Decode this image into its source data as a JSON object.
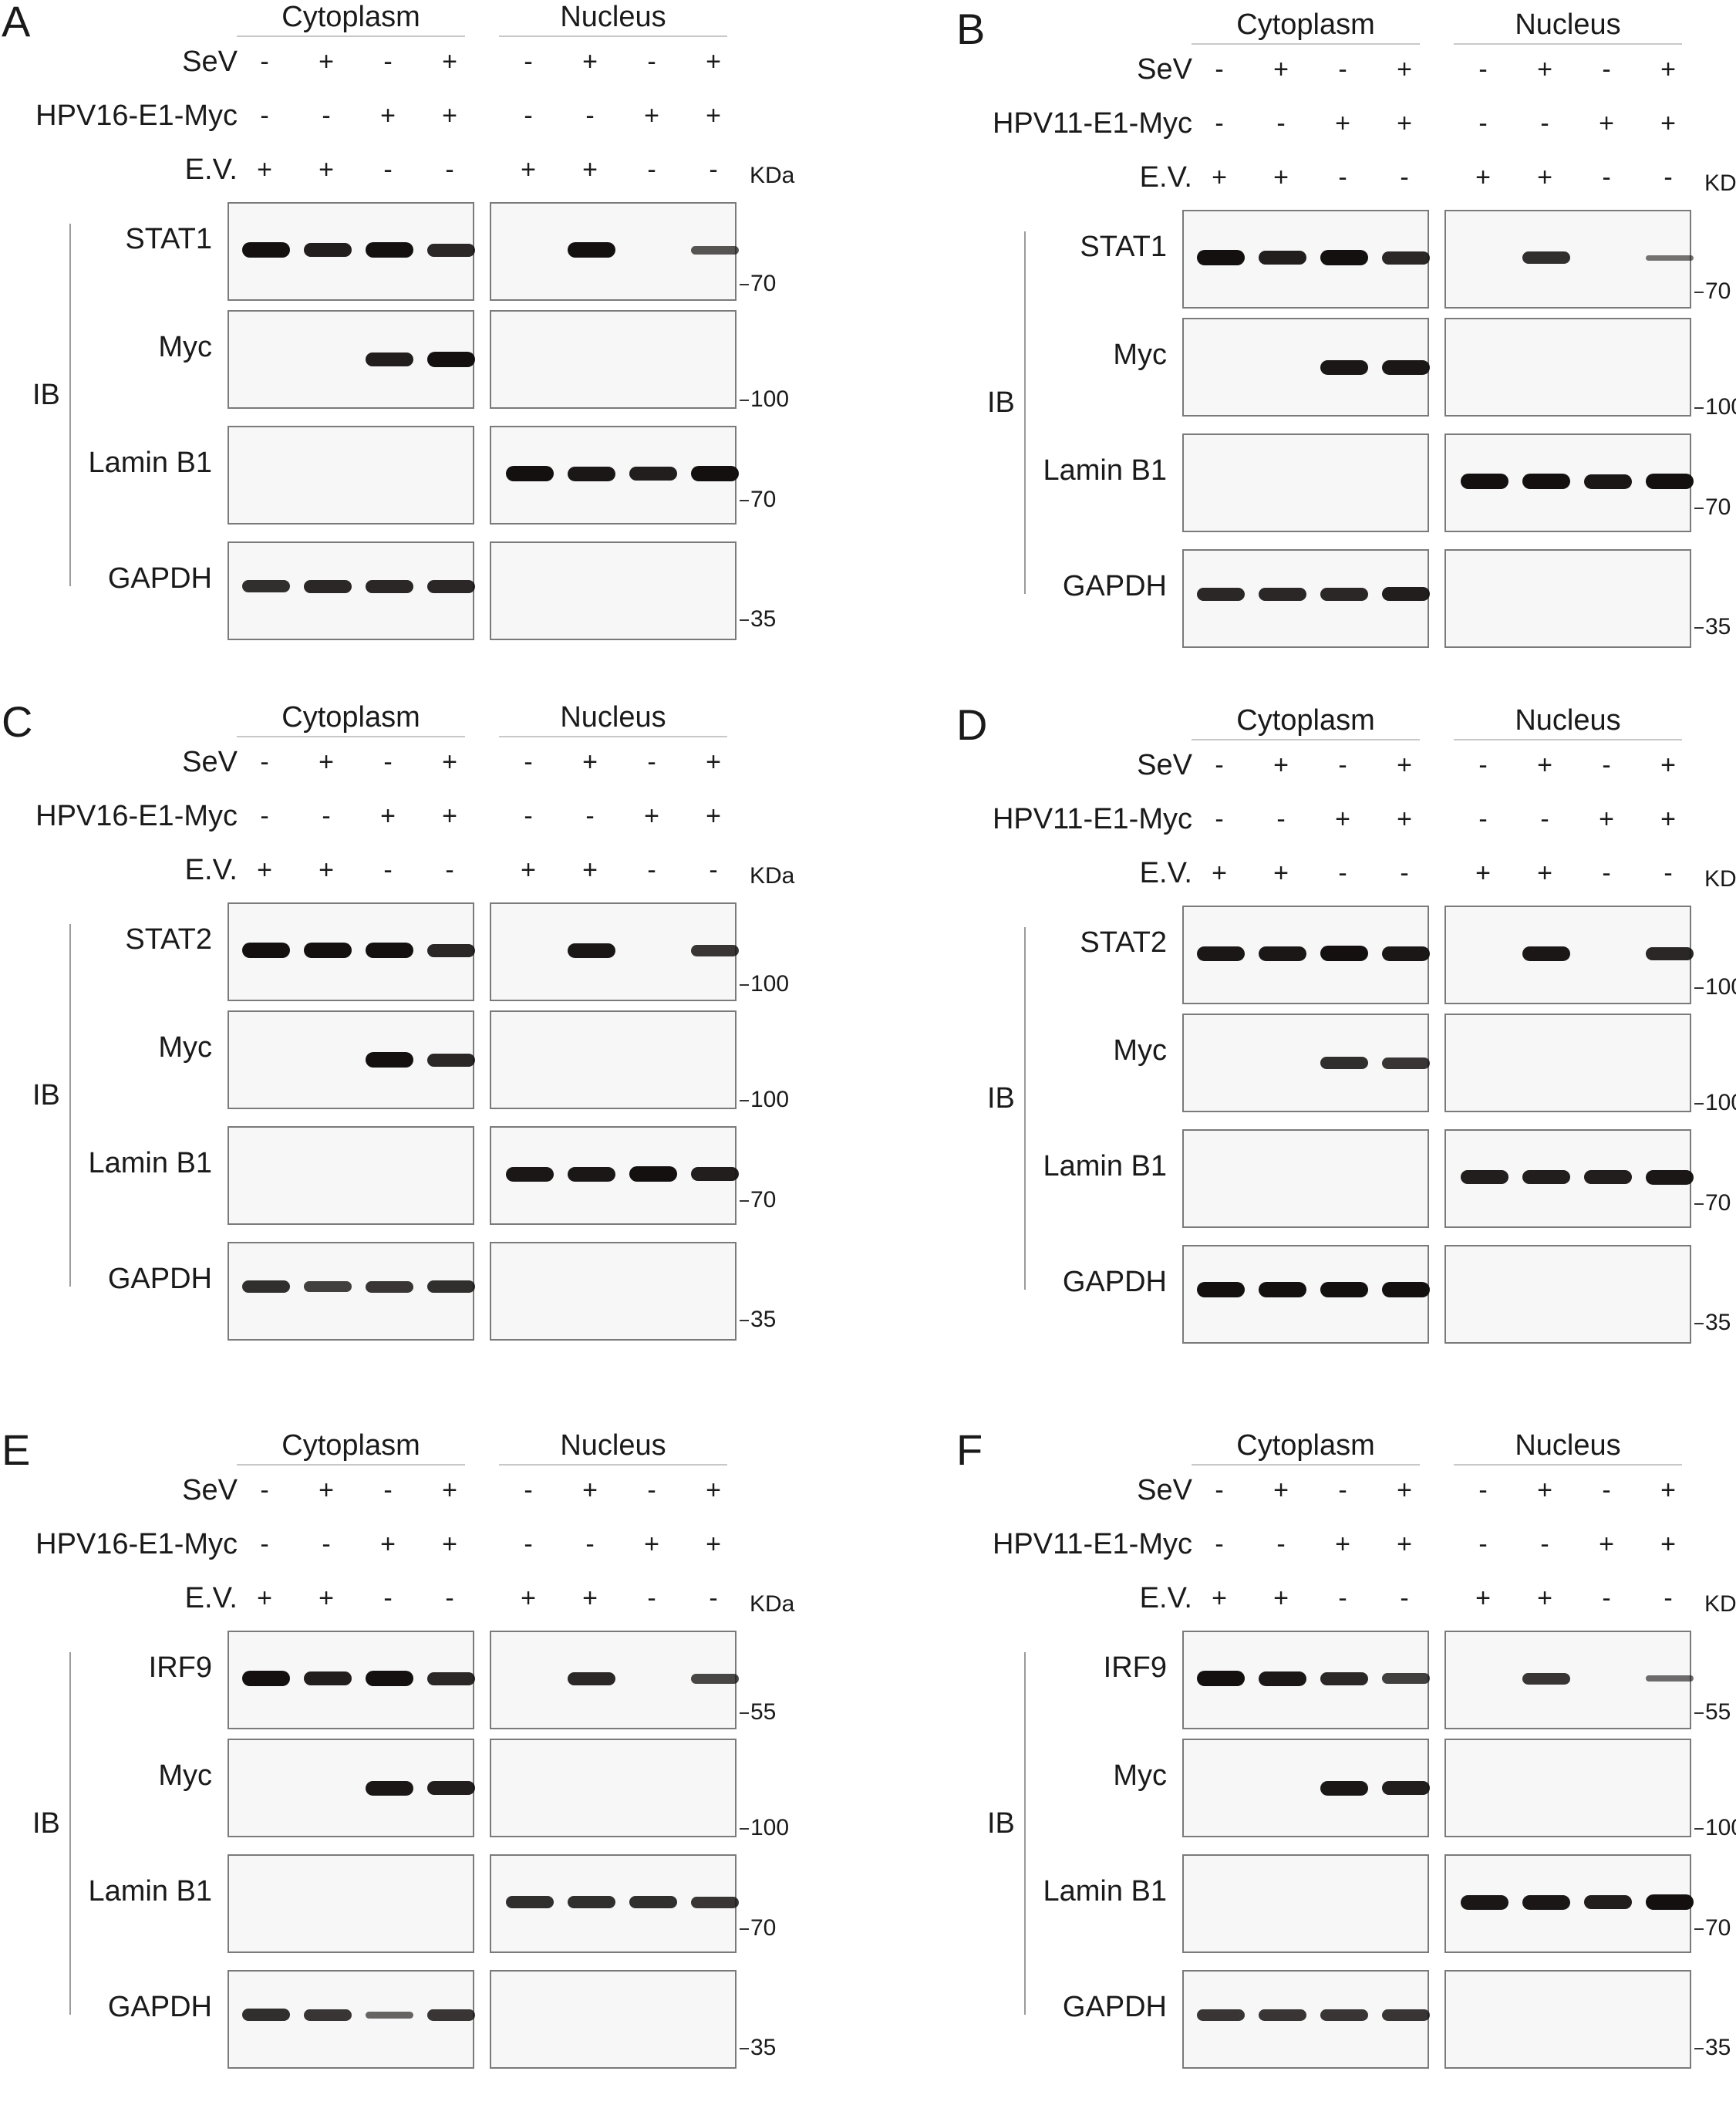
{
  "panels": [
    {
      "letter": "A",
      "fractions": [
        "Cytoplasm",
        "Nucleus"
      ],
      "treatments": [
        {
          "name": "SeV",
          "signs": [
            "-",
            "+",
            "-",
            "+",
            "-",
            "+",
            "-",
            "+"
          ]
        },
        {
          "name": "HPV16-E1-Myc",
          "signs": [
            "-",
            "-",
            "+",
            "+",
            "-",
            "-",
            "+",
            "+"
          ]
        },
        {
          "name": "E.V.",
          "signs": [
            "+",
            "+",
            "-",
            "-",
            "+",
            "+",
            "-",
            "-"
          ]
        }
      ],
      "kda_label": "KDa",
      "ib_label": "IB",
      "blots": [
        {
          "protein": "STAT1",
          "marker": "70",
          "cyto": [
            1,
            0.9,
            1,
            0.85
          ],
          "nuc": [
            0,
            1,
            0,
            0.55
          ]
        },
        {
          "protein": "Myc",
          "marker": "100",
          "cyto": [
            0,
            0,
            0.9,
            1
          ],
          "nuc": [
            0,
            0,
            0,
            0
          ]
        },
        {
          "protein": "Lamin B1",
          "marker": "70",
          "cyto": [
            0,
            0,
            0,
            0
          ],
          "nuc": [
            1,
            0.95,
            0.9,
            1
          ]
        },
        {
          "protein": "GAPDH",
          "marker": "35",
          "cyto": [
            0.8,
            0.85,
            0.85,
            0.85
          ],
          "nuc": [
            0,
            0,
            0,
            0
          ]
        }
      ]
    },
    {
      "letter": "B",
      "fractions": [
        "Cytoplasm",
        "Nucleus"
      ],
      "treatments": [
        {
          "name": "SeV",
          "signs": [
            "-",
            "+",
            "-",
            "+",
            "-",
            "+",
            "-",
            "+"
          ]
        },
        {
          "name": "HPV11-E1-Myc",
          "signs": [
            "-",
            "-",
            "+",
            "+",
            "-",
            "-",
            "+",
            "+"
          ]
        },
        {
          "name": "E.V.",
          "signs": [
            "+",
            "+",
            "-",
            "-",
            "+",
            "+",
            "-",
            "-"
          ]
        }
      ],
      "kda_label": "KDa",
      "ib_label": "IB",
      "blots": [
        {
          "protein": "STAT1",
          "marker": "70",
          "cyto": [
            1,
            0.9,
            1,
            0.85
          ],
          "nuc": [
            0,
            0.8,
            0,
            0.35
          ]
        },
        {
          "protein": "Myc",
          "marker": "100",
          "cyto": [
            0,
            0,
            0.95,
            0.95
          ],
          "nuc": [
            0,
            0,
            0,
            0
          ]
        },
        {
          "protein": "Lamin B1",
          "marker": "70",
          "cyto": [
            0,
            0,
            0,
            0
          ],
          "nuc": [
            1,
            1,
            0.95,
            1
          ]
        },
        {
          "protein": "GAPDH",
          "marker": "35",
          "cyto": [
            0.85,
            0.85,
            0.85,
            0.9
          ],
          "nuc": [
            0,
            0,
            0,
            0
          ]
        }
      ]
    },
    {
      "letter": "C",
      "fractions": [
        "Cytoplasm",
        "Nucleus"
      ],
      "treatments": [
        {
          "name": "SeV",
          "signs": [
            "-",
            "+",
            "-",
            "+",
            "-",
            "+",
            "-",
            "+"
          ]
        },
        {
          "name": "HPV16-E1-Myc",
          "signs": [
            "-",
            "-",
            "+",
            "+",
            "-",
            "-",
            "+",
            "+"
          ]
        },
        {
          "name": "E.V.",
          "signs": [
            "+",
            "+",
            "-",
            "-",
            "+",
            "+",
            "-",
            "-"
          ]
        }
      ],
      "kda_label": "KDa",
      "ib_label": "IB",
      "blots": [
        {
          "protein": "STAT2",
          "marker": "100",
          "cyto": [
            1,
            1,
            1,
            0.85
          ],
          "nuc": [
            0,
            0.95,
            0,
            0.75
          ]
        },
        {
          "protein": "Myc",
          "marker": "100",
          "cyto": [
            0,
            0,
            1,
            0.85
          ],
          "nuc": [
            0,
            0,
            0,
            0
          ]
        },
        {
          "protein": "Lamin B1",
          "marker": "70",
          "cyto": [
            0,
            0,
            0,
            0
          ],
          "nuc": [
            0.95,
            0.95,
            1,
            0.9
          ]
        },
        {
          "protein": "GAPDH",
          "marker": "35",
          "cyto": [
            0.8,
            0.7,
            0.75,
            0.8
          ],
          "nuc": [
            0,
            0,
            0,
            0
          ]
        }
      ]
    },
    {
      "letter": "D",
      "fractions": [
        "Cytoplasm",
        "Nucleus"
      ],
      "treatments": [
        {
          "name": "SeV",
          "signs": [
            "-",
            "+",
            "-",
            "+",
            "-",
            "+",
            "-",
            "+"
          ]
        },
        {
          "name": "HPV11-E1-Myc",
          "signs": [
            "-",
            "-",
            "+",
            "+",
            "-",
            "-",
            "+",
            "+"
          ]
        },
        {
          "name": "E.V.",
          "signs": [
            "+",
            "+",
            "-",
            "-",
            "+",
            "+",
            "-",
            "-"
          ]
        }
      ],
      "kda_label": "KDa",
      "ib_label": "IB",
      "blots": [
        {
          "protein": "STAT2",
          "marker": "100",
          "cyto": [
            0.95,
            0.95,
            1,
            0.95
          ],
          "nuc": [
            0,
            0.95,
            0,
            0.85
          ]
        },
        {
          "protein": "Myc",
          "marker": "100",
          "cyto": [
            0,
            0,
            0.8,
            0.75
          ],
          "nuc": [
            0,
            0,
            0,
            0
          ]
        },
        {
          "protein": "Lamin B1",
          "marker": "70",
          "cyto": [
            0,
            0,
            0,
            0
          ],
          "nuc": [
            0.9,
            0.9,
            0.9,
            0.95
          ]
        },
        {
          "protein": "GAPDH",
          "marker": "35",
          "cyto": [
            1,
            1,
            1,
            1
          ],
          "nuc": [
            0,
            0,
            0,
            0
          ]
        }
      ]
    },
    {
      "letter": "E",
      "fractions": [
        "Cytoplasm",
        "Nucleus"
      ],
      "treatments": [
        {
          "name": "SeV",
          "signs": [
            "-",
            "+",
            "-",
            "+",
            "-",
            "+",
            "-",
            "+"
          ]
        },
        {
          "name": "HPV16-E1-Myc",
          "signs": [
            "-",
            "-",
            "+",
            "+",
            "-",
            "-",
            "+",
            "+"
          ]
        },
        {
          "name": "E.V.",
          "signs": [
            "+",
            "+",
            "-",
            "-",
            "+",
            "+",
            "-",
            "-"
          ]
        }
      ],
      "kda_label": "KDa",
      "ib_label": "IB",
      "blots": [
        {
          "protein": "IRF9",
          "marker": "55",
          "cyto": [
            1,
            0.9,
            1,
            0.85
          ],
          "nuc": [
            0,
            0.85,
            0,
            0.65
          ]
        },
        {
          "protein": "Myc",
          "marker": "100",
          "cyto": [
            0,
            0,
            0.95,
            0.9
          ],
          "nuc": [
            0,
            0,
            0,
            0
          ]
        },
        {
          "protein": "Lamin B1",
          "marker": "70",
          "cyto": [
            0,
            0,
            0,
            0
          ],
          "nuc": [
            0.8,
            0.8,
            0.8,
            0.75
          ]
        },
        {
          "protein": "GAPDH",
          "marker": "35",
          "cyto": [
            0.8,
            0.75,
            0.45,
            0.75
          ],
          "nuc": [
            0,
            0,
            0,
            0
          ]
        }
      ]
    },
    {
      "letter": "F",
      "fractions": [
        "Cytoplasm",
        "Nucleus"
      ],
      "treatments": [
        {
          "name": "SeV",
          "signs": [
            "-",
            "+",
            "-",
            "+",
            "-",
            "+",
            "-",
            "+"
          ]
        },
        {
          "name": "HPV11-E1-Myc",
          "signs": [
            "-",
            "-",
            "+",
            "+",
            "-",
            "-",
            "+",
            "+"
          ]
        },
        {
          "name": "E.V.",
          "signs": [
            "+",
            "+",
            "-",
            "-",
            "+",
            "+",
            "-",
            "-"
          ]
        }
      ],
      "kda_label": "KDa",
      "ib_label": "IB",
      "blots": [
        {
          "protein": "IRF9",
          "marker": "55",
          "cyto": [
            1,
            0.95,
            0.85,
            0.7
          ],
          "nuc": [
            0,
            0.75,
            0,
            0.4
          ]
        },
        {
          "protein": "Myc",
          "marker": "100",
          "cyto": [
            0,
            0,
            0.95,
            0.9
          ],
          "nuc": [
            0,
            0,
            0,
            0
          ]
        },
        {
          "protein": "Lamin B1",
          "marker": "70",
          "cyto": [
            0,
            0,
            0,
            0
          ],
          "nuc": [
            0.95,
            0.95,
            0.9,
            1
          ]
        },
        {
          "protein": "GAPDH",
          "marker": "35",
          "cyto": [
            0.75,
            0.75,
            0.75,
            0.75
          ],
          "nuc": [
            0,
            0,
            0,
            0
          ]
        }
      ]
    }
  ]
}
